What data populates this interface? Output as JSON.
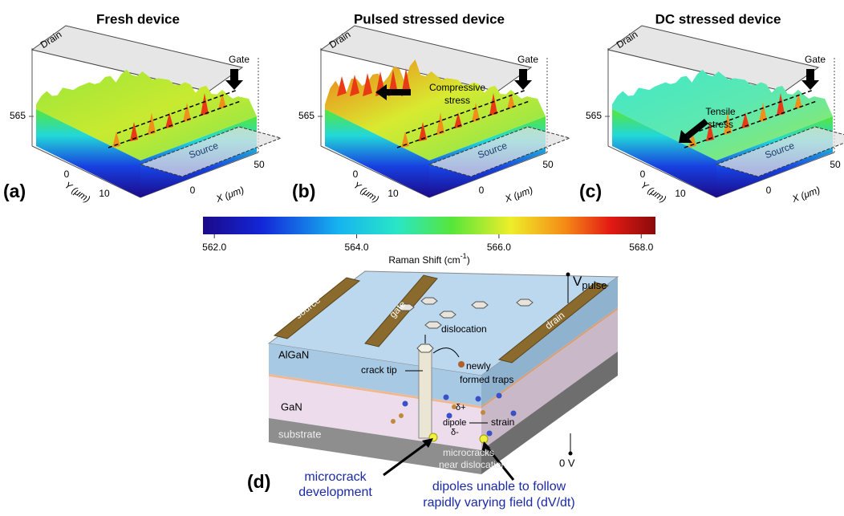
{
  "panels": [
    {
      "title": "Fresh device",
      "letter": "(a)",
      "z_tick": "565",
      "y_ticks": [
        "0",
        "10"
      ],
      "x_ticks": [
        "0",
        "50"
      ],
      "y_label": "Y (μm)",
      "x_label": "X (μm)",
      "drain": "Drain",
      "source": "Source",
      "gate": "Gate"
    },
    {
      "title": "Pulsed stressed device",
      "letter": "(b)",
      "z_tick": "565",
      "y_ticks": [
        "0",
        "10"
      ],
      "x_ticks": [
        "0",
        "50"
      ],
      "y_label": "Y (μm)",
      "x_label": "X (μm)",
      "drain": "Drain",
      "source": "Source",
      "gate": "Gate",
      "annotation": [
        "Compressive",
        "stress"
      ]
    },
    {
      "title": "DC stressed device",
      "letter": "(c)",
      "z_tick": "565",
      "y_ticks": [
        "0",
        "10"
      ],
      "x_ticks": [
        "0",
        "50"
      ],
      "y_label": "Y (μm)",
      "x_label": "X (μm)",
      "drain": "Drain",
      "source": "Source",
      "gate": "Gate",
      "annotation": [
        "Tensile",
        "stress"
      ]
    }
  ],
  "colorbar": {
    "label": "Raman Shift (cm",
    "label_sup": "-1",
    "label_end": ")",
    "lim": [
      561.84,
      568.2
    ],
    "ticks": [
      {
        "value": 562,
        "label": "562.0"
      },
      {
        "value": 564,
        "label": "564.0"
      },
      {
        "value": 566,
        "label": "566.0"
      },
      {
        "value": 568,
        "label": "568.0"
      }
    ]
  },
  "diagram": {
    "letter": "(d)",
    "source": "source",
    "gate": "gate",
    "drain": "drain",
    "v": "V",
    "v_sub": "pulse",
    "dislocation": "dislocation",
    "algan": "AlGaN",
    "newly": [
      "newly",
      "formed traps"
    ],
    "crack_tip": "crack tip",
    "gan": "GaN",
    "delta_plus": "δ+",
    "dipole": "dipole",
    "delta_minus": "δ-",
    "strain": "strain",
    "substrate": "substrate",
    "microcracks": [
      "microcracks",
      "near dislocation"
    ],
    "zero_v": "0 V",
    "microcrack_dev": [
      "microcrack",
      "development"
    ],
    "dipoles_note": [
      "dipoles unable to follow",
      "rapidly varying field (dV/dt)"
    ]
  }
}
